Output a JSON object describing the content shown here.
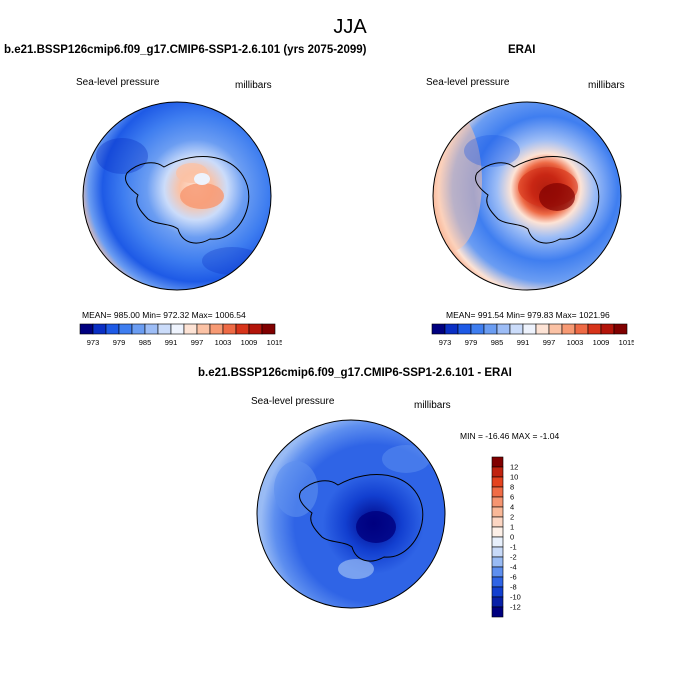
{
  "main_title": "JJA",
  "chart_data": [
    {
      "type": "heatmap",
      "projection": "south-polar-stereographic",
      "title": "b.e21.BSSP126cmip6.f09_g17.CMIP6-SSP1-2.6.101 (yrs 2075-2099)",
      "left_label": "Sea-level pressure",
      "right_label": "millibars",
      "stats": {
        "mean": "985.00",
        "min": "972.32",
        "max": "1006.54"
      },
      "stats_text": "MEAN= 985.00  Min= 972.32  Max= 1006.54",
      "colorbar": {
        "orientation": "horizontal",
        "levels": [
          "973",
          "979",
          "985",
          "991",
          "997",
          "1003",
          "1009",
          "1015"
        ],
        "colors": [
          "#00007f",
          "#0a2fc4",
          "#1e5ae6",
          "#3f7ef0",
          "#6b9df2",
          "#9dbdf6",
          "#cbdcfa",
          "#eef3fd",
          "#fde3d5",
          "#fbc2a5",
          "#f79a74",
          "#ee6a45",
          "#d7341a",
          "#b3140a",
          "#800000"
        ]
      }
    },
    {
      "type": "heatmap",
      "projection": "south-polar-stereographic",
      "title": "ERAI",
      "left_label": "Sea-level pressure",
      "right_label": "millibars",
      "stats": {
        "mean": "991.54",
        "min": "979.83",
        "max": "1021.96"
      },
      "stats_text": "MEAN= 991.54  Min= 979.83  Max= 1021.96",
      "colorbar": {
        "orientation": "horizontal",
        "levels": [
          "973",
          "979",
          "985",
          "991",
          "997",
          "1003",
          "1009",
          "1015"
        ],
        "colors": [
          "#00007f",
          "#0a2fc4",
          "#1e5ae6",
          "#3f7ef0",
          "#6b9df2",
          "#9dbdf6",
          "#cbdcfa",
          "#eef3fd",
          "#fde3d5",
          "#fbc2a5",
          "#f79a74",
          "#ee6a45",
          "#d7341a",
          "#b3140a",
          "#800000"
        ]
      }
    },
    {
      "type": "heatmap",
      "projection": "south-polar-stereographic",
      "title": "b.e21.BSSP126cmip6.f09_g17.CMIP6-SSP1-2.6.101 - ERAI",
      "left_label": "Sea-level pressure",
      "right_label": "millibars",
      "stats": {
        "min": "-16.46",
        "max": "-1.04"
      },
      "stats_text": "MIN = -16.46 MAX =  -1.04",
      "colorbar": {
        "orientation": "vertical",
        "levels": [
          "12",
          "10",
          "8",
          "6",
          "4",
          "2",
          "1",
          "0",
          "-1",
          "-2",
          "-4",
          "-6",
          "-8",
          "-10",
          "-12"
        ],
        "colors": [
          "#800000",
          "#c0220f",
          "#e4431f",
          "#f06c46",
          "#f59571",
          "#f9b898",
          "#fcd6c3",
          "#fdf0e8",
          "#e8f0fc",
          "#c8daf8",
          "#99bbf4",
          "#5e8fef",
          "#2f64e6",
          "#123fd0",
          "#0820a8",
          "#00007f"
        ]
      }
    }
  ]
}
